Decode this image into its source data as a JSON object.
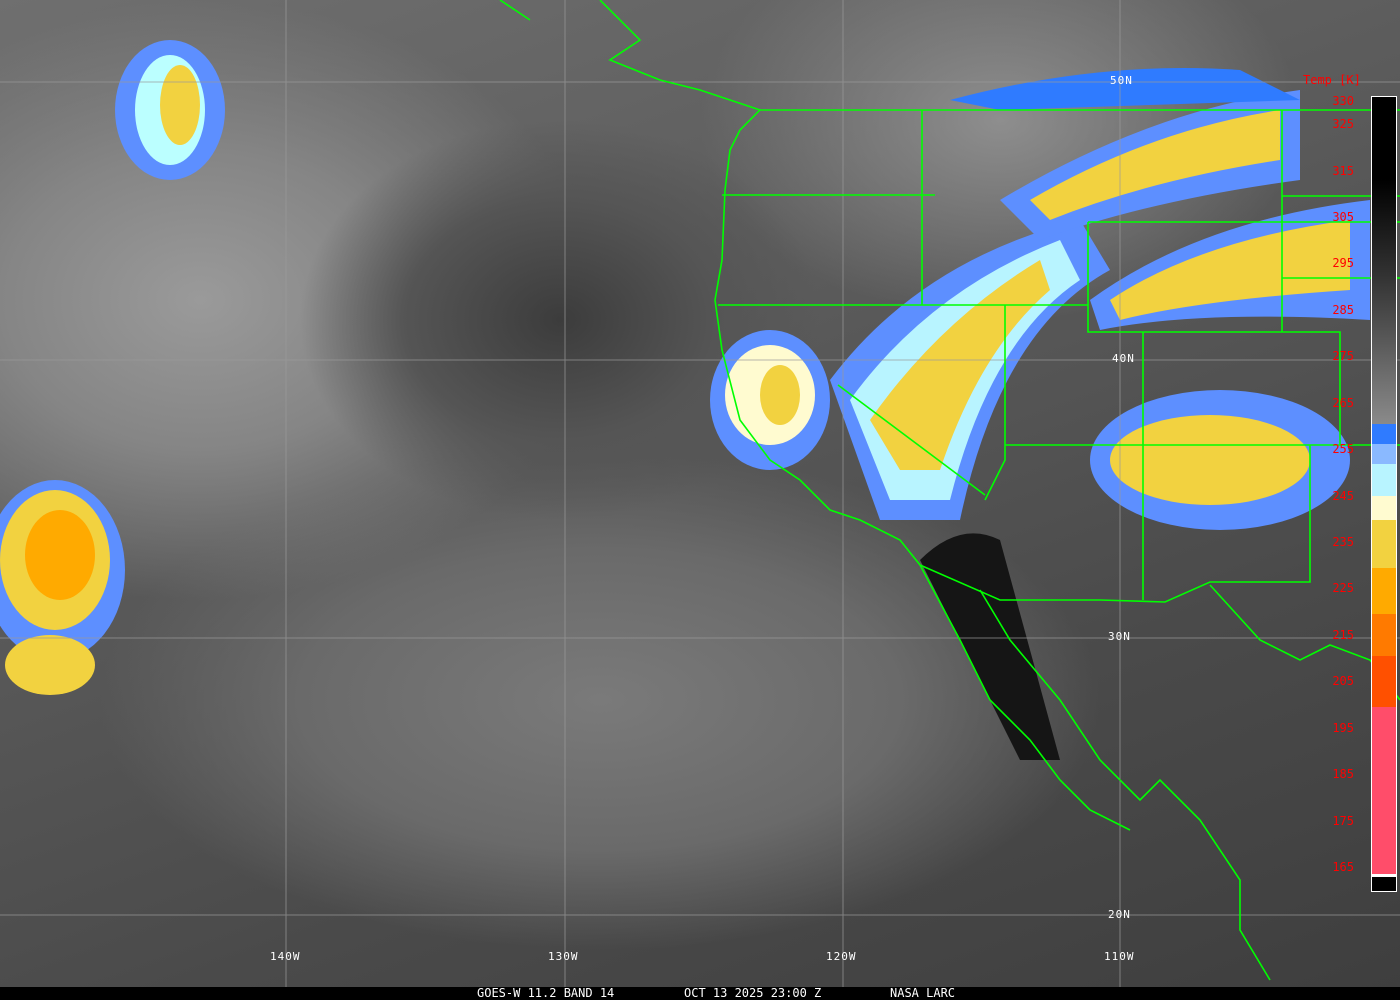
{
  "caption": {
    "satellite": "GOES-W 11.2 BAND 14",
    "datetime": "OCT 13 2025 23:00 Z",
    "source": "NASA LARC"
  },
  "lat_labels": [
    "50N",
    "40N",
    "30N",
    "20N"
  ],
  "lon_labels": [
    "140W",
    "130W",
    "120W",
    "110W"
  ],
  "colorbar": {
    "title": "Temp [K]",
    "ticks": [
      "330",
      "325",
      "315",
      "305",
      "295",
      "285",
      "275",
      "265",
      "255",
      "245",
      "235",
      "225",
      "215",
      "205",
      "195",
      "185",
      "175",
      "165"
    ],
    "range_k": [
      165,
      330
    ],
    "colors": {
      "black": "#000000",
      "gray_mid": "#8a8a8a",
      "blue": "#2f7bff",
      "light_blue": "#8ab9ff",
      "pale_cyan": "#b8f4ff",
      "pale_yellow": "#fffbd0",
      "yellow": "#f2d240",
      "orange": "#ffaa00",
      "dark_orange": "#ff7a00",
      "red_orange": "#ff5000",
      "pink": "#ff4d6a"
    }
  },
  "boundary_color": "#00ff00"
}
